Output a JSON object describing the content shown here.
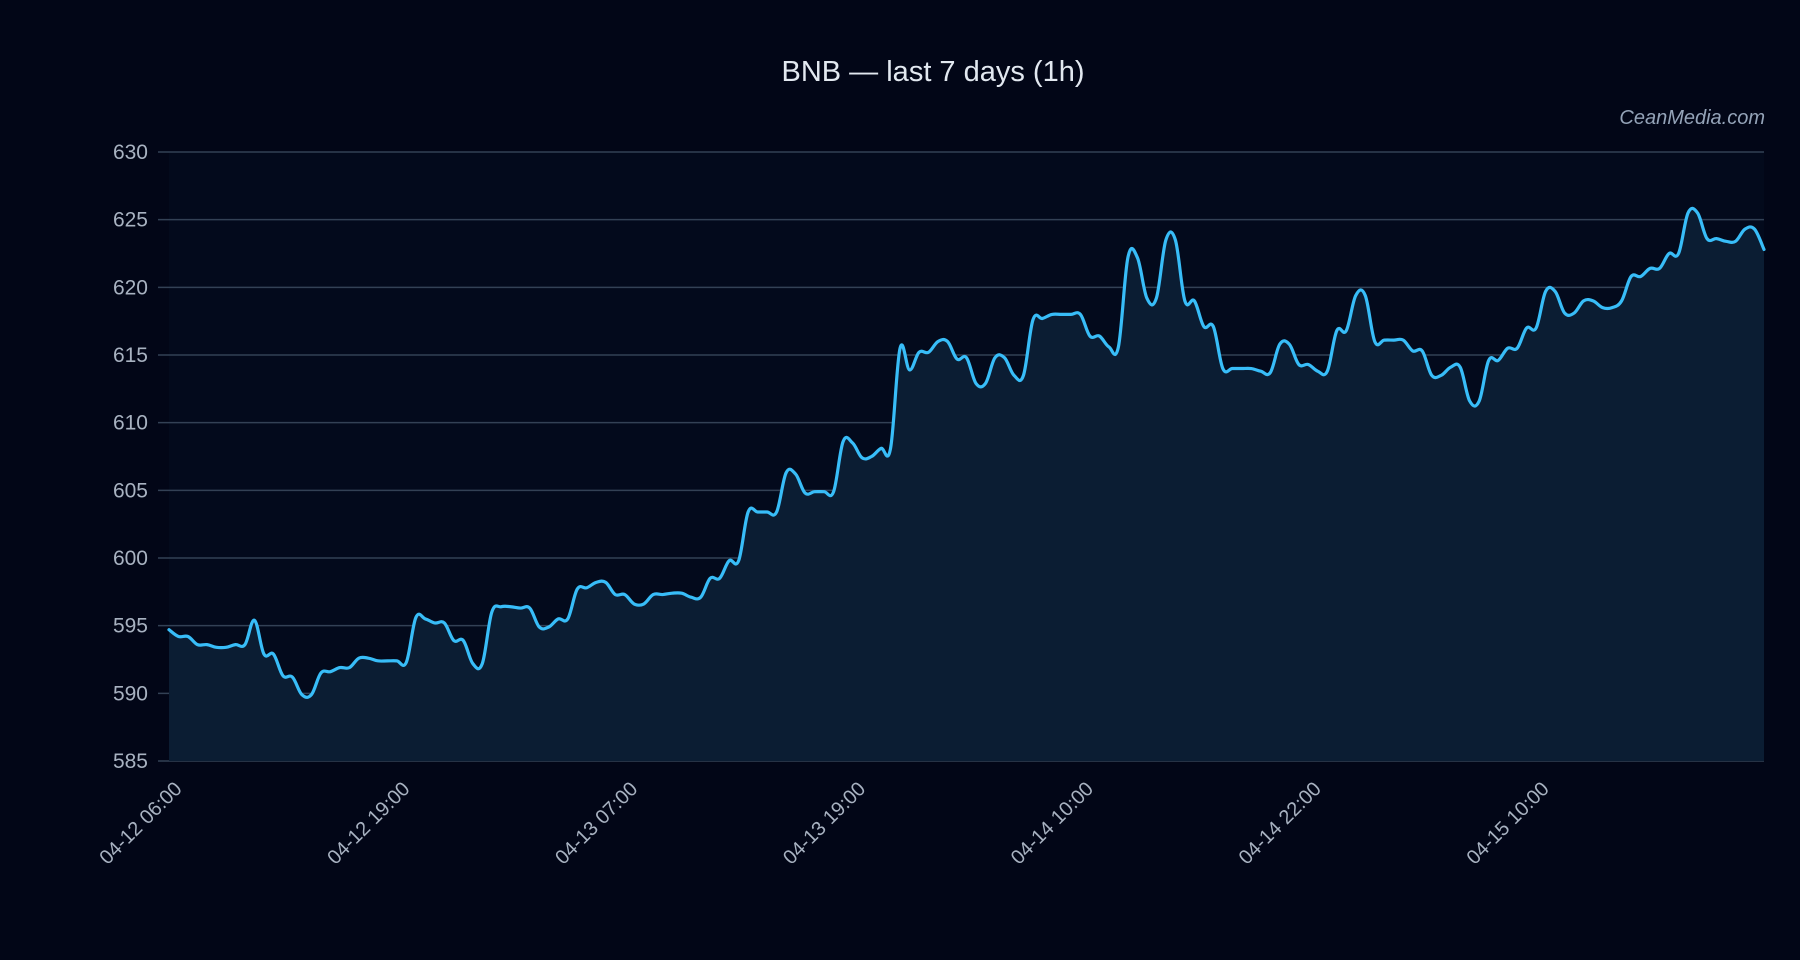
{
  "header": {
    "title": "BNB — last 7 days (1h)",
    "watermark": "CeanMedia.com"
  },
  "colors": {
    "background": "#020617",
    "line": "#38bdf8",
    "area_fill": "#0b1d33",
    "grid": "#334155",
    "tick_text": "#a8b2c1",
    "title_text": "#e2e8f0"
  },
  "chart_data": {
    "type": "area",
    "title": "BNB — last 7 days (1h)",
    "xlabel": "",
    "ylabel": "",
    "ylim": [
      585,
      630
    ],
    "yticks": [
      585,
      590,
      595,
      600,
      605,
      610,
      615,
      620,
      625,
      630
    ],
    "grid": true,
    "legend": "none",
    "annotations": [
      "CeanMedia.com"
    ],
    "xtick_labels": [
      "04-12 06:00",
      "04-12 19:00",
      "04-13 07:00",
      "04-13 19:00",
      "04-14 10:00",
      "04-14 22:00",
      "04-15 10:00"
    ],
    "xtick_indices": [
      0,
      24,
      48,
      72,
      96,
      120,
      144
    ],
    "series": [
      {
        "name": "BNB",
        "values": [
          594.7,
          594.2,
          594.2,
          593.6,
          593.6,
          593.4,
          593.4,
          593.6,
          593.6,
          595.4,
          592.9,
          592.9,
          591.3,
          591.2,
          589.9,
          589.9,
          591.5,
          591.6,
          591.9,
          591.9,
          592.6,
          592.6,
          592.4,
          592.4,
          592.4,
          592.3,
          595.6,
          595.5,
          595.2,
          595.2,
          593.9,
          593.9,
          592.2,
          592.2,
          596.0,
          596.4,
          596.4,
          596.3,
          596.3,
          594.9,
          594.9,
          595.5,
          595.5,
          597.7,
          597.8,
          598.2,
          598.2,
          597.3,
          597.3,
          596.6,
          596.6,
          597.3,
          597.3,
          597.4,
          597.4,
          597.1,
          597.1,
          598.5,
          598.5,
          599.8,
          599.8,
          603.4,
          603.4,
          603.4,
          603.4,
          606.3,
          606.2,
          604.8,
          604.9,
          604.9,
          604.9,
          608.6,
          608.5,
          607.4,
          607.5,
          608.1,
          608.1,
          615.5,
          613.9,
          615.2,
          615.2,
          616.0,
          616.0,
          614.7,
          614.8,
          612.9,
          612.9,
          614.8,
          614.8,
          613.5,
          613.5,
          617.6,
          617.7,
          618.0,
          618.0,
          618.0,
          618.0,
          616.4,
          616.4,
          615.6,
          615.6,
          622.2,
          622.2,
          619.2,
          619.2,
          623.5,
          623.5,
          619.0,
          619.0,
          617.1,
          617.1,
          614.0,
          614.0,
          614.0,
          614.0,
          613.8,
          613.7,
          615.8,
          615.8,
          614.3,
          614.3,
          613.8,
          613.8,
          616.8,
          616.8,
          619.4,
          619.4,
          616.0,
          616.1,
          616.1,
          616.1,
          615.3,
          615.3,
          613.5,
          613.5,
          614.1,
          614.1,
          611.6,
          611.6,
          614.6,
          614.6,
          615.5,
          615.5,
          617.0,
          617.0,
          619.7,
          619.7,
          618.1,
          618.1,
          619.0,
          619.0,
          618.5,
          618.5,
          619.0,
          620.8,
          620.8,
          621.4,
          621.4,
          622.5,
          622.5,
          625.5,
          625.5,
          623.6,
          623.6,
          623.4,
          623.4,
          624.3,
          624.3,
          622.8
        ]
      }
    ]
  }
}
